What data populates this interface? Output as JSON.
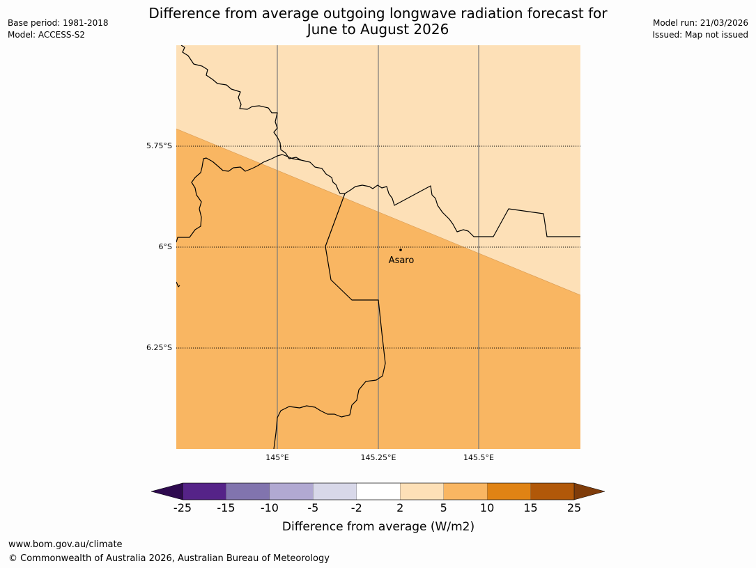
{
  "header": {
    "title_line1": "Difference from average outgoing longwave radiation forecast for",
    "title_line2": "June to August 2026",
    "base_period": "Base period: 1981-2018",
    "model": "Model: ACCESS-S2",
    "model_run": "Model run: 21/03/2026",
    "issued": "Issued: Map not issued"
  },
  "map": {
    "lat_labels": [
      "5.75°S",
      "6°S",
      "6.25°S"
    ],
    "lon_labels": [
      "145°E",
      "145.25°E",
      "145.5°E"
    ],
    "place": {
      "name": "Asaro"
    },
    "fill_colors": {
      "upper_zone": "#fde0b7",
      "lower_zone": "#f9b662"
    },
    "upper_zone_range": "2 to 5",
    "lower_zone_range": "5 to 10"
  },
  "colorbar": {
    "ticks": [
      "-25",
      "-15",
      "-10",
      "-5",
      "-2",
      "2",
      "5",
      "10",
      "15",
      "25"
    ],
    "colors": [
      "#552388",
      "#8174ae",
      "#b1a9d2",
      "#d8d8e9",
      "#ffffff",
      "#fde0b7",
      "#f9b662",
      "#e08314",
      "#b15809"
    ],
    "under_color": "#2e0a4f",
    "over_color": "#7f3c0a",
    "label": "Difference from average (W/m2)"
  },
  "footer": {
    "url": "www.bom.gov.au/climate",
    "copyright": "© Commonwealth of Australia 2026, Australian Bureau of Meteorology"
  }
}
